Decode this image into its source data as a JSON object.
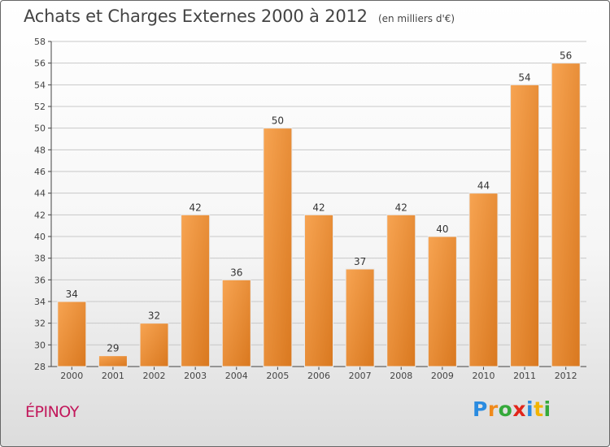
{
  "header": {
    "title": "Achats et Charges Externes 2000 à 2012",
    "subtitle": "(en milliers d'€)"
  },
  "commune": "ÉPINOY",
  "logo": {
    "text": "Proxiti",
    "letters": [
      "P",
      "r",
      "o",
      "x",
      "i",
      "t",
      "i"
    ]
  },
  "colors": {
    "bar_top": "#f7a452",
    "bar_bottom": "#d9781f",
    "commune_text": "#c2185b",
    "axis": "#444444",
    "grid": "#c8c8c8"
  },
  "chart_data": {
    "type": "bar",
    "title": "Achats et Charges Externes 2000 à 2012",
    "subtitle": "(en milliers d'€)",
    "categories": [
      "2000",
      "2001",
      "2002",
      "2003",
      "2004",
      "2005",
      "2006",
      "2007",
      "2008",
      "2009",
      "2010",
      "2011",
      "2012"
    ],
    "values": [
      34,
      29,
      32,
      42,
      36,
      50,
      42,
      37,
      42,
      40,
      44,
      54,
      56
    ],
    "ylim": [
      28,
      58
    ],
    "yticks": [
      28,
      30,
      32,
      34,
      36,
      38,
      40,
      42,
      44,
      46,
      48,
      50,
      52,
      54,
      56,
      58
    ],
    "grid": true,
    "data_labels": true,
    "xlabel": "",
    "ylabel": ""
  }
}
